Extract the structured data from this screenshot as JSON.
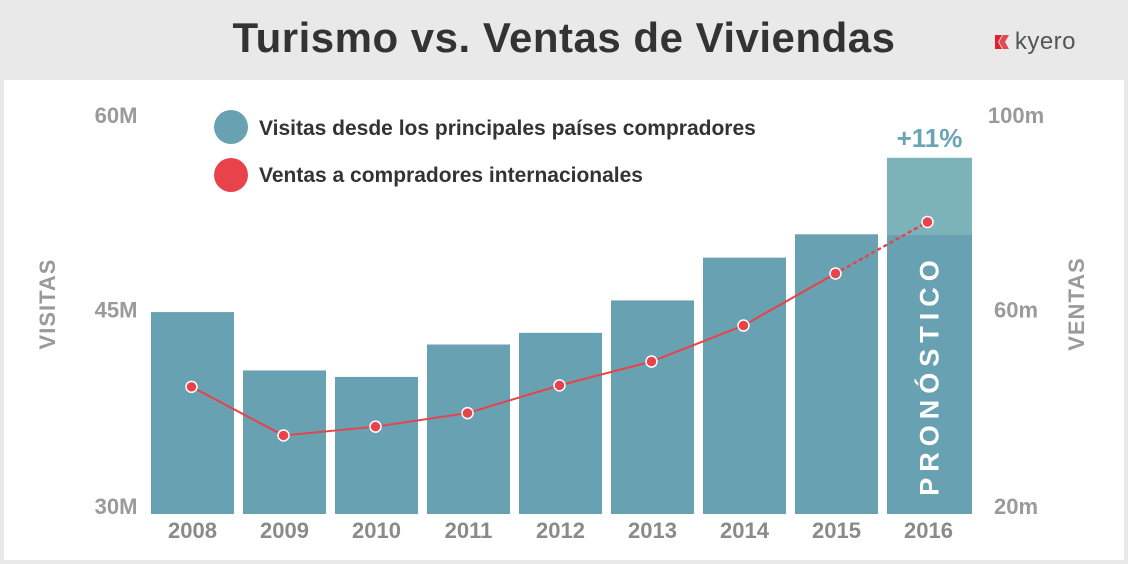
{
  "header": {
    "title": "Turismo vs. Ventas de Viviendas",
    "brand": "kyero",
    "brand_color": "#e0202e"
  },
  "chart_data": {
    "type": "bar",
    "categories": [
      "2008",
      "2009",
      "2010",
      "2011",
      "2012",
      "2013",
      "2014",
      "2015",
      "2016"
    ],
    "series": [
      {
        "name": "Visitas desde los principales países compradores",
        "kind": "bar",
        "axis": "left",
        "color": "#67a1b2",
        "values": [
          44.8,
          40.3,
          39.8,
          42.3,
          43.2,
          45.7,
          49.0,
          50.8,
          56.7
        ]
      },
      {
        "name": "Ventas a compradores internacionales",
        "kind": "line",
        "axis": "right",
        "color": "#e8434a",
        "values": [
          44.1,
          34.1,
          35.9,
          38.7,
          44.4,
          49.3,
          56.7,
          67.4,
          78.0
        ]
      }
    ],
    "forecast": {
      "category": "2016",
      "label": "PRONÓSTICO",
      "growth_label": "+11%",
      "bar_base_value": 50.8,
      "highlight_color": "#7bb3b9"
    },
    "y_left": {
      "label": "VISITAS",
      "ticks": [
        "60M",
        "45M",
        "30M"
      ],
      "tick_values": [
        60,
        45,
        30
      ],
      "range": [
        30,
        60
      ]
    },
    "y_right": {
      "label": "VENTAS",
      "ticks": [
        "100m",
        "60m",
        "20m"
      ],
      "tick_values": [
        100,
        60,
        20
      ],
      "range": [
        20,
        100
      ]
    },
    "legend_position": "top-left"
  }
}
